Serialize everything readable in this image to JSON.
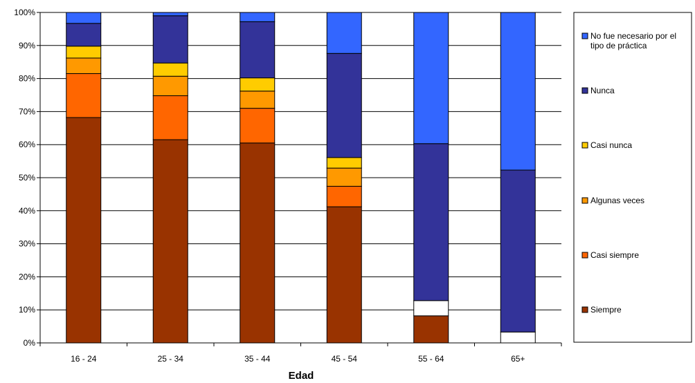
{
  "chart_data": {
    "type": "bar",
    "stacked": true,
    "normalized": true,
    "title": "",
    "xlabel": "Edad",
    "ylabel": "",
    "ylim": [
      0,
      100
    ],
    "yticks": [
      "0%",
      "10%",
      "20%",
      "30%",
      "40%",
      "50%",
      "60%",
      "70%",
      "80%",
      "90%",
      "100%"
    ],
    "grid": true,
    "legend_position": "right",
    "categories": [
      "16 - 24",
      "25 - 34",
      "35 - 44",
      "45 - 54",
      "55 - 64",
      "65+"
    ],
    "series": [
      {
        "name": "Siempre",
        "color": "#993300",
        "values": [
          68.2,
          61.5,
          60.5,
          41.2,
          8.2,
          0
        ]
      },
      {
        "name": "Casi siempre",
        "color": "#FF6600",
        "values": [
          13.3,
          13.3,
          10.5,
          6.2,
          0,
          0
        ]
      },
      {
        "name": "Algunas veces",
        "color": "#FF9900",
        "values": [
          4.7,
          5.9,
          5.2,
          5.5,
          0,
          0
        ]
      },
      {
        "name": "Casi nunca",
        "color": "#FFCC00",
        "values": [
          3.6,
          4.0,
          4.0,
          3.2,
          0,
          0
        ]
      },
      {
        "name": "",
        "color": "#FFFFFF",
        "values": [
          0,
          0,
          0,
          0,
          4.6,
          3.3
        ]
      },
      {
        "name": "Nunca",
        "color": "#333399",
        "values": [
          6.9,
          14.3,
          17.0,
          31.5,
          47.5,
          49.0
        ]
      },
      {
        "name": "No fue necesario por el tipo de práctica",
        "color": "#3366FF",
        "values": [
          3.3,
          1.0,
          2.8,
          12.4,
          39.7,
          47.7
        ]
      }
    ],
    "legend": [
      {
        "label_lines": [
          "No fue necesario por el",
          "tipo de práctica"
        ],
        "color": "#3366FF"
      },
      {
        "label_lines": [
          "Nunca"
        ],
        "color": "#333399"
      },
      {
        "label_lines": [
          "Casi nunca"
        ],
        "color": "#FFCC00"
      },
      {
        "label_lines": [
          "Algunas veces"
        ],
        "color": "#FF9900"
      },
      {
        "label_lines": [
          "Casi siempre"
        ],
        "color": "#FF6600"
      },
      {
        "label_lines": [
          "Siempre"
        ],
        "color": "#993300"
      }
    ]
  }
}
